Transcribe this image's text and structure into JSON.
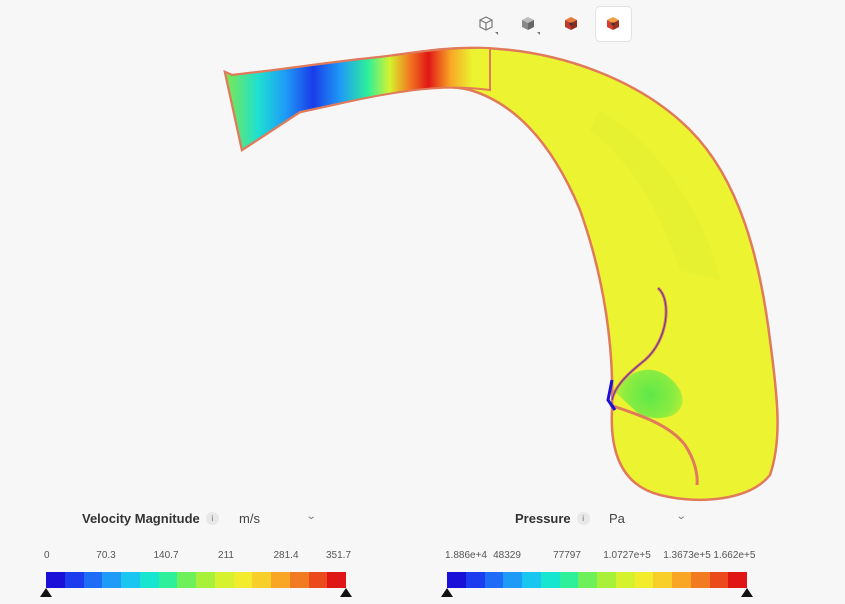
{
  "toolbar": {
    "buttons": [
      {
        "name": "view-wireframe-button",
        "icon": "cube-outline-icon",
        "active": false
      },
      {
        "name": "view-solid-button",
        "icon": "cube-solid-icon",
        "active": false
      },
      {
        "name": "view-surface-button",
        "icon": "cube-colored-icon",
        "active": false
      },
      {
        "name": "view-results-button",
        "icon": "cube-colored-icon",
        "active": true
      }
    ]
  },
  "velocity_legend": {
    "title": "Velocity Magnitude",
    "info_icon": "i",
    "unit": "m/s",
    "ticks": [
      "0",
      "70.3",
      "140.7",
      "211",
      "281.4",
      "351.7"
    ]
  },
  "pressure_legend": {
    "title": "Pressure",
    "info_icon": "i",
    "unit": "Pa",
    "ticks": [
      "1.886e+4",
      "48329",
      "77797",
      "1.0727e+5",
      "1.3673e+5",
      "1.662e+5"
    ]
  },
  "colormap": [
    "#1a10d8",
    "#1d3cf0",
    "#1f6cf7",
    "#1e9bf7",
    "#19c6f0",
    "#16e6d0",
    "#2ef09a",
    "#6ef05a",
    "#a8f03a",
    "#d6f22e",
    "#f2ec2c",
    "#f8cf28",
    "#f8a624",
    "#f27a20",
    "#ea4a1c",
    "#e01616"
  ],
  "colors": {
    "domain_fill": "#ecf330",
    "domain_outline": "#e07a5a"
  }
}
